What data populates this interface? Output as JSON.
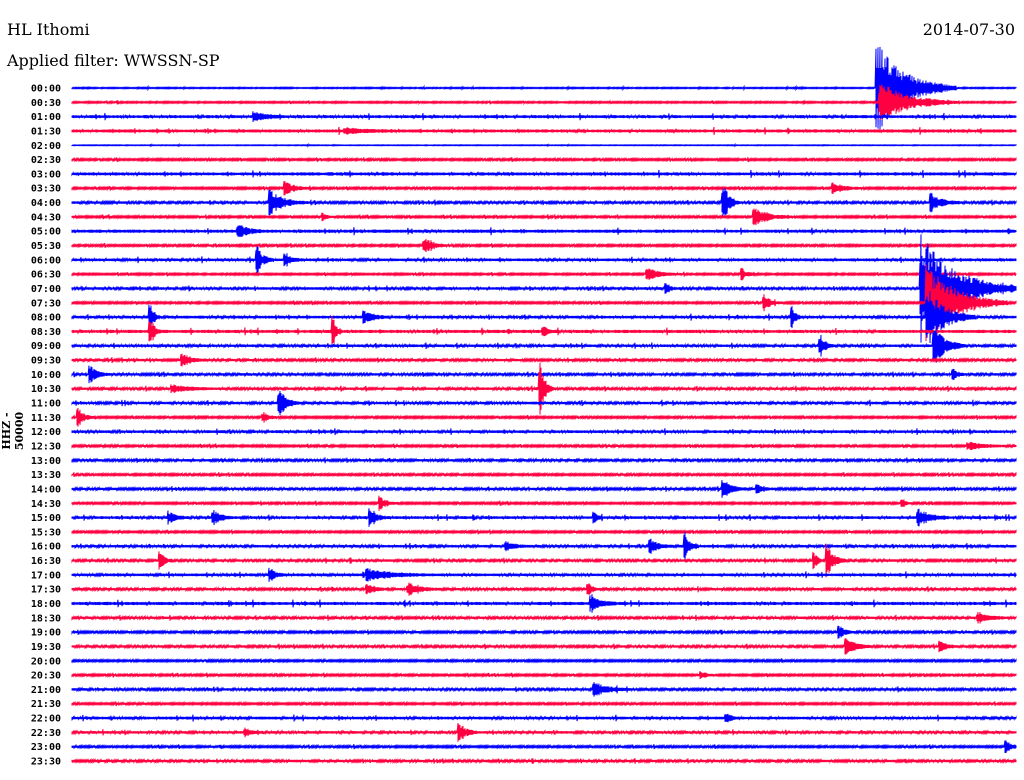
{
  "header": {
    "station": "HL Ithomi",
    "date": "2014-07-30",
    "filter": "Applied filter: WWSSN-SP"
  },
  "chart_data": {
    "type": "line",
    "title": "HL Ithomi",
    "subtitle": "Applied filter: WWSSN-SP",
    "ylabel": "HHZ - 50000",
    "xlabel": "",
    "x_range_minutes": [
      0,
      30
    ],
    "colors": [
      "#0000ff",
      "#ff0040"
    ],
    "row_labels": [
      "00:00",
      "00:30",
      "01:00",
      "01:30",
      "02:00",
      "02:30",
      "03:00",
      "03:30",
      "04:00",
      "04:30",
      "05:00",
      "05:30",
      "06:00",
      "06:30",
      "07:00",
      "07:30",
      "08:00",
      "08:30",
      "09:00",
      "09:30",
      "10:00",
      "10:30",
      "11:00",
      "11:30",
      "12:00",
      "12:30",
      "13:00",
      "13:30",
      "14:00",
      "14:30",
      "15:00",
      "15:30",
      "16:00",
      "16:30",
      "17:00",
      "17:30",
      "18:00",
      "18:30",
      "19:00",
      "19:30",
      "20:00",
      "20:30",
      "21:00",
      "21:30",
      "22:00",
      "22:30",
      "23:00",
      "23:30"
    ],
    "noise": [
      0.6,
      0.8,
      1.5,
      1.6,
      0.4,
      1.0,
      1.6,
      1.0,
      1.2,
      1.0,
      1.6,
      1.0,
      1.4,
      0.9,
      1.3,
      1.0,
      1.4,
      1.6,
      1.3,
      1.2,
      1.2,
      1.2,
      1.3,
      1.0,
      1.4,
      1.0,
      1.2,
      1.0,
      1.2,
      1.0,
      1.4,
      1.0,
      1.3,
      1.2,
      1.4,
      1.2,
      1.6,
      1.2,
      1.1,
      1.2,
      1.0,
      1.0,
      1.2,
      1.0,
      1.4,
      1.3,
      1.0,
      1.2
    ],
    "events": [
      {
        "row": 0,
        "minute": 25.6,
        "amp": 46,
        "dur": 2.5
      },
      {
        "row": 1,
        "minute": 25.7,
        "amp": 20,
        "dur": 2.5
      },
      {
        "row": 2,
        "minute": 5.8,
        "amp": 5,
        "dur": 1
      },
      {
        "row": 3,
        "minute": 8.7,
        "amp": 3,
        "dur": 1.5
      },
      {
        "row": 7,
        "minute": 6.8,
        "amp": 7,
        "dur": 0.8
      },
      {
        "row": 7,
        "minute": 24.2,
        "amp": 6,
        "dur": 1
      },
      {
        "row": 8,
        "minute": 6.3,
        "amp": 13,
        "dur": 1.2
      },
      {
        "row": 8,
        "minute": 20.7,
        "amp": 22,
        "dur": 0.5
      },
      {
        "row": 8,
        "minute": 27.3,
        "amp": 9,
        "dur": 1
      },
      {
        "row": 9,
        "minute": 8.0,
        "amp": 4,
        "dur": 0.3
      },
      {
        "row": 9,
        "minute": 21.7,
        "amp": 9,
        "dur": 1.2
      },
      {
        "row": 10,
        "minute": 5.3,
        "amp": 7,
        "dur": 0.8
      },
      {
        "row": 11,
        "minute": 11.2,
        "amp": 8,
        "dur": 0.8
      },
      {
        "row": 12,
        "minute": 5.9,
        "amp": 13,
        "dur": 0.5
      },
      {
        "row": 12,
        "minute": 6.8,
        "amp": 6,
        "dur": 0.6
      },
      {
        "row": 13,
        "minute": 18.3,
        "amp": 6,
        "dur": 1.2
      },
      {
        "row": 13,
        "minute": 21.3,
        "amp": 6,
        "dur": 0.5
      },
      {
        "row": 14,
        "minute": 18.9,
        "amp": 6,
        "dur": 0.3
      },
      {
        "row": 14,
        "minute": 27.0,
        "amp": 55,
        "dur": 3
      },
      {
        "row": 15,
        "minute": 22.0,
        "amp": 8,
        "dur": 0.6
      },
      {
        "row": 15,
        "minute": 27.2,
        "amp": 40,
        "dur": 2.5
      },
      {
        "row": 16,
        "minute": 2.5,
        "amp": 12,
        "dur": 0.3
      },
      {
        "row": 16,
        "minute": 9.3,
        "amp": 6,
        "dur": 0.8
      },
      {
        "row": 16,
        "minute": 22.9,
        "amp": 10,
        "dur": 0.3
      },
      {
        "row": 16,
        "minute": 27.2,
        "amp": 30,
        "dur": 1.5
      },
      {
        "row": 17,
        "minute": 2.5,
        "amp": 16,
        "dur": 0.3
      },
      {
        "row": 17,
        "minute": 8.3,
        "amp": 15,
        "dur": 0.3
      },
      {
        "row": 17,
        "minute": 15.0,
        "amp": 6,
        "dur": 0.3
      },
      {
        "row": 18,
        "minute": 23.8,
        "amp": 12,
        "dur": 0.4
      },
      {
        "row": 18,
        "minute": 27.4,
        "amp": 20,
        "dur": 1
      },
      {
        "row": 19,
        "minute": 3.5,
        "amp": 7,
        "dur": 0.8
      },
      {
        "row": 20,
        "minute": 0.6,
        "amp": 8,
        "dur": 0.6
      },
      {
        "row": 20,
        "minute": 28.0,
        "amp": 6,
        "dur": 0.4
      },
      {
        "row": 21,
        "minute": 14.9,
        "amp": 30,
        "dur": 0.4
      },
      {
        "row": 21,
        "minute": 3.2,
        "amp": 4,
        "dur": 1.5
      },
      {
        "row": 22,
        "minute": 6.6,
        "amp": 15,
        "dur": 0.6
      },
      {
        "row": 23,
        "minute": 0.2,
        "amp": 10,
        "dur": 0.5
      },
      {
        "row": 23,
        "minute": 6.1,
        "amp": 5,
        "dur": 0.5
      },
      {
        "row": 25,
        "minute": 28.5,
        "amp": 4,
        "dur": 1.5
      },
      {
        "row": 28,
        "minute": 20.7,
        "amp": 9,
        "dur": 0.8
      },
      {
        "row": 28,
        "minute": 21.8,
        "amp": 4,
        "dur": 0.6
      },
      {
        "row": 29,
        "minute": 9.8,
        "amp": 7,
        "dur": 0.6
      },
      {
        "row": 29,
        "minute": 26.4,
        "amp": 5,
        "dur": 0.3
      },
      {
        "row": 30,
        "minute": 3.1,
        "amp": 6,
        "dur": 0.6
      },
      {
        "row": 30,
        "minute": 4.5,
        "amp": 8,
        "dur": 0.6
      },
      {
        "row": 30,
        "minute": 9.5,
        "amp": 10,
        "dur": 0.5
      },
      {
        "row": 30,
        "minute": 16.6,
        "amp": 5,
        "dur": 0.3
      },
      {
        "row": 30,
        "minute": 26.9,
        "amp": 9,
        "dur": 1
      },
      {
        "row": 32,
        "minute": 18.4,
        "amp": 7,
        "dur": 0.7
      },
      {
        "row": 32,
        "minute": 19.5,
        "amp": 14,
        "dur": 0.4
      },
      {
        "row": 32,
        "minute": 13.8,
        "amp": 4,
        "dur": 0.8
      },
      {
        "row": 33,
        "minute": 2.8,
        "amp": 9,
        "dur": 0.4
      },
      {
        "row": 33,
        "minute": 23.6,
        "amp": 8,
        "dur": 0.3
      },
      {
        "row": 33,
        "minute": 24.0,
        "amp": 16,
        "dur": 0.6
      },
      {
        "row": 34,
        "minute": 6.3,
        "amp": 6,
        "dur": 0.5
      },
      {
        "row": 34,
        "minute": 9.4,
        "amp": 6,
        "dur": 2
      },
      {
        "row": 35,
        "minute": 10.7,
        "amp": 7,
        "dur": 1
      },
      {
        "row": 35,
        "minute": 9.4,
        "amp": 5,
        "dur": 0.7
      },
      {
        "row": 35,
        "minute": 16.4,
        "amp": 6,
        "dur": 0.4
      },
      {
        "row": 36,
        "minute": 16.5,
        "amp": 7,
        "dur": 0.8
      },
      {
        "row": 37,
        "minute": 28.8,
        "amp": 6,
        "dur": 1
      },
      {
        "row": 38,
        "minute": 24.4,
        "amp": 6,
        "dur": 0.5
      },
      {
        "row": 39,
        "minute": 24.6,
        "amp": 9,
        "dur": 0.8
      },
      {
        "row": 39,
        "minute": 27.6,
        "amp": 5,
        "dur": 0.6
      },
      {
        "row": 41,
        "minute": 20.0,
        "amp": 4,
        "dur": 0.4
      },
      {
        "row": 42,
        "minute": 16.6,
        "amp": 7,
        "dur": 1.2
      },
      {
        "row": 44,
        "minute": 20.8,
        "amp": 5,
        "dur": 0.4
      },
      {
        "row": 45,
        "minute": 12.3,
        "amp": 10,
        "dur": 0.6
      },
      {
        "row": 45,
        "minute": 5.5,
        "amp": 4,
        "dur": 0.6
      },
      {
        "row": 46,
        "minute": 29.7,
        "amp": 6,
        "dur": 0.5
      }
    ]
  }
}
